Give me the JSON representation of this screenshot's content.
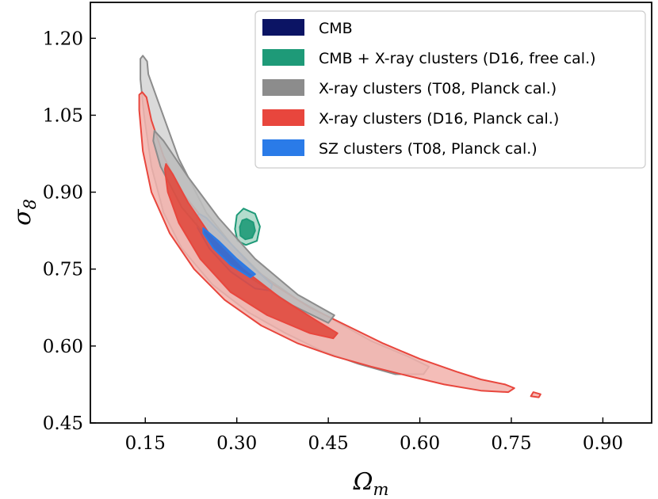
{
  "chart_data": {
    "type": "contour",
    "xlabel": "Ω",
    "xlabel_sub": "m",
    "ylabel": "σ",
    "ylabel_sub": "8",
    "xlim": [
      0.06,
      0.98
    ],
    "ylim": [
      0.45,
      1.27
    ],
    "x_ticks": [
      0.15,
      0.3,
      0.45,
      0.6,
      0.75,
      0.9
    ],
    "x_tick_labels": [
      "0.15",
      "0.30",
      "0.45",
      "0.60",
      "0.75",
      "0.90"
    ],
    "y_ticks": [
      0.45,
      0.6,
      0.75,
      0.9,
      1.05,
      1.2
    ],
    "y_tick_labels": [
      "0.45",
      "0.60",
      "0.75",
      "0.90",
      "1.05",
      "1.20"
    ],
    "legend_position": "top-right",
    "series": [
      {
        "name": "CMB",
        "color": "#0b1464",
        "contours": []
      },
      {
        "name": "CMB + X-ray clusters (D16, free cal.)",
        "color": "#1e9a78",
        "contours": [
          {
            "level": "outer",
            "fill": "#a6d6c4",
            "points": [
              [
                0.311,
                0.868
              ],
              [
                0.33,
                0.858
              ],
              [
                0.338,
                0.833
              ],
              [
                0.333,
                0.805
              ],
              [
                0.315,
                0.797
              ],
              [
                0.301,
                0.805
              ],
              [
                0.297,
                0.828
              ],
              [
                0.3,
                0.855
              ]
            ]
          },
          {
            "level": "inner",
            "fill": "#1e9a78",
            "points": [
              [
                0.316,
                0.848
              ],
              [
                0.327,
                0.841
              ],
              [
                0.33,
                0.825
              ],
              [
                0.325,
                0.811
              ],
              [
                0.314,
                0.808
              ],
              [
                0.306,
                0.815
              ],
              [
                0.305,
                0.832
              ],
              [
                0.309,
                0.845
              ]
            ]
          }
        ]
      },
      {
        "name": "X-ray clusters (T08, Planck cal.)",
        "color": "#8c8c8c",
        "contours": [
          {
            "level": "outer",
            "fill": "#d4d4d4",
            "points": [
              [
                0.146,
                1.166
              ],
              [
                0.153,
                1.155
              ],
              [
                0.155,
                1.13
              ],
              [
                0.17,
                1.08
              ],
              [
                0.205,
                0.965
              ],
              [
                0.25,
                0.86
              ],
              [
                0.29,
                0.8
              ],
              [
                0.34,
                0.74
              ],
              [
                0.4,
                0.69
              ],
              [
                0.46,
                0.65
              ],
              [
                0.52,
                0.61
              ],
              [
                0.58,
                0.58
              ],
              [
                0.615,
                0.56
              ],
              [
                0.606,
                0.545
              ],
              [
                0.56,
                0.545
              ],
              [
                0.5,
                0.565
              ],
              [
                0.44,
                0.59
              ],
              [
                0.38,
                0.625
              ],
              [
                0.32,
                0.665
              ],
              [
                0.26,
                0.72
              ],
              [
                0.21,
                0.79
              ],
              [
                0.18,
                0.86
              ],
              [
                0.16,
                0.95
              ],
              [
                0.148,
                1.05
              ],
              [
                0.142,
                1.12
              ],
              [
                0.142,
                1.16
              ]
            ]
          },
          {
            "level": "inner",
            "fill": "#bdbdbd",
            "points": [
              [
                0.165,
                1.02
              ],
              [
                0.18,
                1.0
              ],
              [
                0.22,
                0.93
              ],
              [
                0.27,
                0.85
              ],
              [
                0.33,
                0.77
              ],
              [
                0.4,
                0.7
              ],
              [
                0.46,
                0.66
              ],
              [
                0.45,
                0.645
              ],
              [
                0.39,
                0.68
              ],
              [
                0.32,
                0.735
              ],
              [
                0.26,
                0.8
              ],
              [
                0.21,
                0.87
              ],
              [
                0.175,
                0.95
              ],
              [
                0.163,
                1.0
              ]
            ]
          }
        ]
      },
      {
        "name": "X-ray clusters (D16, Planck cal.)",
        "color": "#e8463d",
        "contours": [
          {
            "level": "outer",
            "fill": "#f2b2ac",
            "points": [
              [
                0.145,
                1.095
              ],
              [
                0.152,
                1.085
              ],
              [
                0.16,
                1.04
              ],
              [
                0.18,
                0.97
              ],
              [
                0.21,
                0.9
              ],
              [
                0.25,
                0.84
              ],
              [
                0.3,
                0.78
              ],
              [
                0.36,
                0.72
              ],
              [
                0.42,
                0.675
              ],
              [
                0.48,
                0.64
              ],
              [
                0.54,
                0.605
              ],
              [
                0.6,
                0.575
              ],
              [
                0.66,
                0.55
              ],
              [
                0.7,
                0.535
              ],
              [
                0.74,
                0.525
              ],
              [
                0.755,
                0.518
              ],
              [
                0.745,
                0.51
              ],
              [
                0.7,
                0.513
              ],
              [
                0.64,
                0.525
              ],
              [
                0.58,
                0.542
              ],
              [
                0.52,
                0.56
              ],
              [
                0.46,
                0.58
              ],
              [
                0.4,
                0.605
              ],
              [
                0.34,
                0.64
              ],
              [
                0.28,
                0.69
              ],
              [
                0.23,
                0.75
              ],
              [
                0.19,
                0.82
              ],
              [
                0.16,
                0.9
              ],
              [
                0.146,
                0.98
              ],
              [
                0.14,
                1.06
              ],
              [
                0.14,
                1.09
              ]
            ]
          },
          {
            "level": "outer",
            "fill": "#f2b2ac",
            "points": [
              [
                0.786,
                0.51
              ],
              [
                0.798,
                0.506
              ],
              [
                0.795,
                0.5
              ],
              [
                0.782,
                0.502
              ]
            ]
          },
          {
            "level": "inner",
            "fill": "#e04a3e",
            "points": [
              [
                0.184,
                0.955
              ],
              [
                0.195,
                0.935
              ],
              [
                0.22,
                0.88
              ],
              [
                0.26,
                0.81
              ],
              [
                0.31,
                0.75
              ],
              [
                0.37,
                0.695
              ],
              [
                0.43,
                0.65
              ],
              [
                0.465,
                0.625
              ],
              [
                0.458,
                0.615
              ],
              [
                0.42,
                0.625
              ],
              [
                0.35,
                0.66
              ],
              [
                0.29,
                0.705
              ],
              [
                0.24,
                0.77
              ],
              [
                0.205,
                0.84
              ],
              [
                0.187,
                0.9
              ],
              [
                0.182,
                0.945
              ]
            ]
          }
        ]
      },
      {
        "name": "SZ clusters (T08, Planck cal.)",
        "color": "#2a7be8",
        "contours": [
          {
            "level": "outer",
            "fill": "#a9b8ec",
            "points": [
              [
                0.238,
                0.858
              ],
              [
                0.25,
                0.85
              ],
              [
                0.29,
                0.8
              ],
              [
                0.33,
                0.75
              ],
              [
                0.358,
                0.72
              ],
              [
                0.355,
                0.708
              ],
              [
                0.33,
                0.712
              ],
              [
                0.29,
                0.745
              ],
              [
                0.255,
                0.79
              ],
              [
                0.236,
                0.83
              ],
              [
                0.234,
                0.852
              ]
            ]
          },
          {
            "level": "inner",
            "fill": "#2a6fdc",
            "points": [
              [
                0.245,
                0.83
              ],
              [
                0.27,
                0.805
              ],
              [
                0.3,
                0.77
              ],
              [
                0.33,
                0.74
              ],
              [
                0.322,
                0.734
              ],
              [
                0.29,
                0.758
              ],
              [
                0.262,
                0.79
              ],
              [
                0.245,
                0.82
              ]
            ]
          }
        ]
      }
    ]
  }
}
